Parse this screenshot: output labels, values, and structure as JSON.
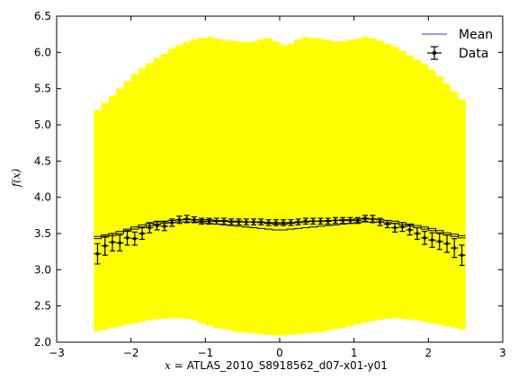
{
  "chart_data": {
    "type": "line",
    "xlabel_math": "x =",
    "xlabel_text": "ATLAS_2010_S8918562_d07-x01-y01",
    "ylabel": "f(x)",
    "xlim": [
      -3,
      3
    ],
    "ylim": [
      2.0,
      6.5
    ],
    "xticks": [
      {
        "value": -3,
        "label": "−3"
      },
      {
        "value": -2,
        "label": "−2"
      },
      {
        "value": -1,
        "label": "−1"
      },
      {
        "value": 0,
        "label": "0"
      },
      {
        "value": 1,
        "label": "1"
      },
      {
        "value": 2,
        "label": "2"
      },
      {
        "value": 3,
        "label": "3"
      }
    ],
    "yticks": [
      {
        "value": 2.0,
        "label": "2.0"
      },
      {
        "value": 2.5,
        "label": "2.5"
      },
      {
        "value": 3.0,
        "label": "3.0"
      },
      {
        "value": 3.5,
        "label": "3.5"
      },
      {
        "value": 4.0,
        "label": "4.0"
      },
      {
        "value": 4.5,
        "label": "4.5"
      },
      {
        "value": 5.0,
        "label": "5.0"
      },
      {
        "value": 5.5,
        "label": "5.5"
      },
      {
        "value": 6.0,
        "label": "6.0"
      },
      {
        "value": 6.5,
        "label": "6.5"
      }
    ],
    "bin_edges": [
      -2.5,
      -2.4,
      -2.3,
      -2.2,
      -2.1,
      -2.0,
      -1.9,
      -1.8,
      -1.7,
      -1.6,
      -1.5,
      -1.4,
      -1.3,
      -1.2,
      -1.1,
      -1.0,
      -0.9,
      -0.8,
      -0.7,
      -0.6,
      -0.5,
      -0.4,
      -0.3,
      -0.2,
      -0.1,
      0.0,
      0.1,
      0.2,
      0.3,
      0.4,
      0.5,
      0.6,
      0.7,
      0.8,
      0.9,
      1.0,
      1.1,
      1.2,
      1.3,
      1.4,
      1.5,
      1.6,
      1.7,
      1.8,
      1.9,
      2.0,
      2.1,
      2.2,
      2.3,
      2.4,
      2.5
    ],
    "band_upper": [
      5.2,
      5.3,
      5.4,
      5.5,
      5.6,
      5.7,
      5.78,
      5.85,
      5.92,
      5.98,
      6.05,
      6.1,
      6.14,
      6.18,
      6.2,
      6.21,
      6.19,
      6.17,
      6.16,
      6.15,
      6.14,
      6.15,
      6.18,
      6.2,
      6.15,
      6.1,
      6.12,
      6.18,
      6.21,
      6.2,
      6.19,
      6.17,
      6.15,
      6.15,
      6.17,
      6.19,
      6.21,
      6.19,
      6.16,
      6.12,
      6.08,
      6.02,
      5.96,
      5.9,
      5.84,
      5.76,
      5.67,
      5.57,
      5.46,
      5.35
    ],
    "band_lower": [
      2.15,
      2.17,
      2.2,
      2.22,
      2.24,
      2.26,
      2.28,
      2.3,
      2.32,
      2.32,
      2.33,
      2.33,
      2.32,
      2.3,
      2.26,
      2.23,
      2.2,
      2.18,
      2.16,
      2.14,
      2.13,
      2.12,
      2.11,
      2.1,
      2.09,
      2.09,
      2.1,
      2.11,
      2.12,
      2.13,
      2.14,
      2.16,
      2.18,
      2.2,
      2.22,
      2.25,
      2.27,
      2.29,
      2.31,
      2.32,
      2.33,
      2.32,
      2.31,
      2.3,
      2.28,
      2.26,
      2.24,
      2.22,
      2.2,
      2.17
    ],
    "mean_upper": [
      3.46,
      3.48,
      3.5,
      3.53,
      3.56,
      3.59,
      3.62,
      3.64,
      3.66,
      3.67,
      3.68,
      3.69,
      3.69,
      3.69,
      3.69,
      3.69,
      3.68,
      3.68,
      3.67,
      3.67,
      3.66,
      3.66,
      3.65,
      3.64,
      3.63,
      3.63,
      3.64,
      3.65,
      3.66,
      3.67,
      3.67,
      3.68,
      3.68,
      3.69,
      3.69,
      3.7,
      3.7,
      3.7,
      3.69,
      3.68,
      3.67,
      3.65,
      3.63,
      3.61,
      3.59,
      3.57,
      3.54,
      3.51,
      3.49,
      3.47
    ],
    "mean_lower": [
      3.43,
      3.45,
      3.47,
      3.5,
      3.53,
      3.56,
      3.59,
      3.61,
      3.63,
      3.64,
      3.65,
      3.66,
      3.66,
      3.66,
      3.65,
      3.64,
      3.63,
      3.62,
      3.61,
      3.6,
      3.59,
      3.58,
      3.57,
      3.56,
      3.55,
      3.55,
      3.56,
      3.57,
      3.58,
      3.59,
      3.6,
      3.61,
      3.62,
      3.63,
      3.64,
      3.65,
      3.66,
      3.66,
      3.66,
      3.65,
      3.64,
      3.62,
      3.6,
      3.58,
      3.56,
      3.54,
      3.51,
      3.48,
      3.46,
      3.44
    ],
    "series": [
      {
        "name": "Mean",
        "color": "#6f7fd6"
      },
      {
        "name": "Data",
        "color": "#000000",
        "x": [
          -2.45,
          -2.35,
          -2.25,
          -2.15,
          -2.05,
          -1.95,
          -1.85,
          -1.75,
          -1.65,
          -1.55,
          -1.45,
          -1.35,
          -1.25,
          -1.15,
          -1.05,
          -0.95,
          -0.85,
          -0.75,
          -0.65,
          -0.55,
          -0.45,
          -0.35,
          -0.25,
          -0.15,
          -0.05,
          0.05,
          0.15,
          0.25,
          0.35,
          0.45,
          0.55,
          0.65,
          0.75,
          0.85,
          0.95,
          1.05,
          1.15,
          1.25,
          1.35,
          1.45,
          1.55,
          1.65,
          1.75,
          1.85,
          1.95,
          2.05,
          2.15,
          2.25,
          2.35,
          2.45
        ],
        "y": [
          3.22,
          3.33,
          3.38,
          3.37,
          3.44,
          3.43,
          3.5,
          3.58,
          3.61,
          3.6,
          3.65,
          3.69,
          3.7,
          3.69,
          3.67,
          3.67,
          3.67,
          3.67,
          3.66,
          3.66,
          3.66,
          3.66,
          3.66,
          3.65,
          3.65,
          3.65,
          3.65,
          3.66,
          3.67,
          3.67,
          3.67,
          3.67,
          3.68,
          3.68,
          3.68,
          3.68,
          3.71,
          3.7,
          3.66,
          3.63,
          3.58,
          3.59,
          3.55,
          3.5,
          3.44,
          3.41,
          3.39,
          3.36,
          3.3,
          3.2
        ],
        "yerr": [
          0.14,
          0.13,
          0.12,
          0.11,
          0.1,
          0.09,
          0.08,
          0.07,
          0.06,
          0.06,
          0.05,
          0.05,
          0.05,
          0.04,
          0.04,
          0.04,
          0.04,
          0.04,
          0.04,
          0.04,
          0.04,
          0.04,
          0.04,
          0.04,
          0.04,
          0.04,
          0.04,
          0.04,
          0.04,
          0.04,
          0.04,
          0.04,
          0.04,
          0.04,
          0.04,
          0.04,
          0.04,
          0.05,
          0.05,
          0.05,
          0.06,
          0.06,
          0.07,
          0.08,
          0.09,
          0.1,
          0.11,
          0.12,
          0.13,
          0.14
        ],
        "xerr": 0.05
      }
    ],
    "band_color": "#ffff00",
    "legend_position": "top-right"
  }
}
